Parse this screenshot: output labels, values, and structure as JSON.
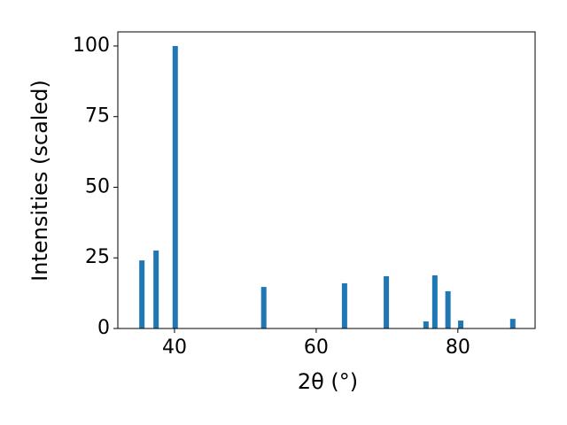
{
  "chart_data": {
    "type": "bar",
    "x_label": "2θ (°)",
    "y_label": "Intensities (scaled)",
    "x": [
      35.4,
      37.4,
      40.1,
      52.6,
      64.0,
      69.9,
      75.5,
      76.75,
      78.6,
      80.4,
      87.75
    ],
    "values": [
      24.1,
      27.6,
      100,
      14.7,
      16.0,
      18.5,
      2.5,
      18.8,
      13.2,
      2.8,
      3.4
    ],
    "color": "#1f77b4",
    "xlim": [
      32,
      90.9
    ],
    "xticks": [
      40,
      60,
      80
    ],
    "ylim": [
      0,
      105
    ],
    "yticks": [
      0,
      25,
      50,
      75,
      100
    ],
    "grid": false
  }
}
